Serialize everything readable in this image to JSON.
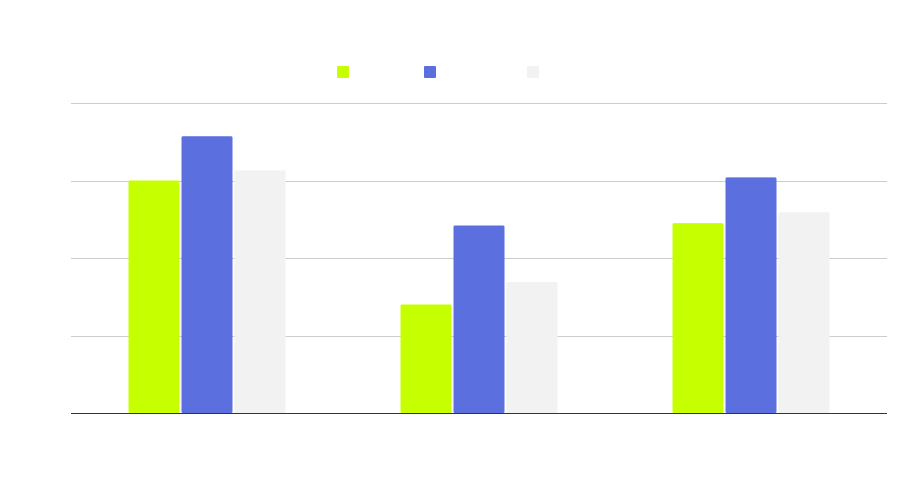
{
  "chart_data": {
    "type": "bar",
    "categories": [
      "",
      "",
      ""
    ],
    "series": [
      {
        "color": "#c6ff00",
        "values": [
          3.0,
          1.4,
          2.45
        ]
      },
      {
        "color": "#5b6fde",
        "values": [
          3.57,
          2.42,
          3.04
        ]
      },
      {
        "color": "#f2f2f2",
        "values": [
          3.13,
          1.69,
          2.59
        ]
      }
    ],
    "ylim": [
      0,
      4
    ],
    "yticks": [
      0,
      1,
      2,
      3,
      4
    ],
    "grid": true,
    "legend_position": "top-center"
  }
}
